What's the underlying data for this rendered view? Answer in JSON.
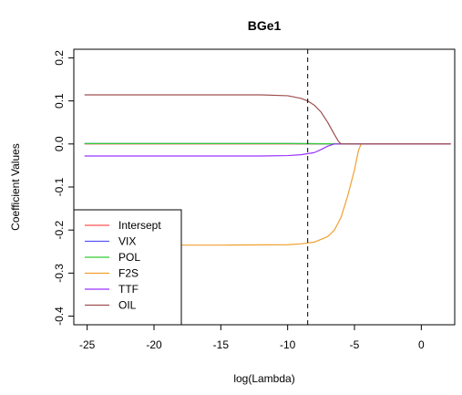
{
  "chart_data": {
    "type": "line",
    "title": "BGe1",
    "xlabel": "log(Lambda)",
    "ylabel": "Coefficient Values",
    "xlim": [
      -26,
      2.5
    ],
    "ylim": [
      -0.42,
      0.22
    ],
    "xticks": [
      -25,
      -20,
      -15,
      -10,
      -5,
      0
    ],
    "yticks": [
      -0.4,
      -0.3,
      -0.2,
      -0.1,
      0.0,
      0.1,
      0.2
    ],
    "ytick_labels": [
      "-0.4",
      "-0.3",
      "-0.2",
      "-0.1",
      "0.0",
      "0.1",
      "0.2"
    ],
    "vline": {
      "x": -8.5,
      "style": "dashed",
      "color": "#000000"
    },
    "grid": false,
    "legend_position": "bottom-left",
    "series": [
      {
        "name": "Intersept",
        "color": "#ff5555",
        "x": [
          -25.2,
          -10,
          -5,
          2.2
        ],
        "y": [
          0.0,
          0.0,
          0.0,
          0.0
        ]
      },
      {
        "name": "VIX",
        "color": "#5555ff",
        "x": [
          -25.2,
          -10,
          -5,
          2.2
        ],
        "y": [
          0.001,
          0.001,
          0.0,
          0.0
        ]
      },
      {
        "name": "POL",
        "color": "#33cc33",
        "x": [
          -25.2,
          -10,
          -5,
          2.2
        ],
        "y": [
          0.001,
          0.001,
          0.0,
          0.0
        ]
      },
      {
        "name": "F2S",
        "color": "#f0a030",
        "x": [
          -25.2,
          -15,
          -10,
          -9,
          -8,
          -7,
          -6.5,
          -6,
          -5.5,
          -5,
          -4.7,
          -4.5,
          2.2
        ],
        "y": [
          -0.235,
          -0.235,
          -0.234,
          -0.232,
          -0.228,
          -0.215,
          -0.2,
          -0.17,
          -0.12,
          -0.06,
          -0.015,
          0.0,
          0.0
        ]
      },
      {
        "name": "TTF",
        "color": "#9933ff",
        "x": [
          -25.2,
          -12,
          -10,
          -9,
          -8,
          -7.5,
          -7,
          -6.5,
          2.2
        ],
        "y": [
          -0.028,
          -0.028,
          -0.027,
          -0.025,
          -0.02,
          -0.013,
          -0.005,
          0.0,
          0.0
        ]
      },
      {
        "name": "OIL",
        "color": "#a05050",
        "x": [
          -25.2,
          -12,
          -10,
          -9,
          -8.5,
          -8,
          -7.5,
          -7,
          -6.5,
          -6.2,
          -6,
          2.2
        ],
        "y": [
          0.114,
          0.114,
          0.112,
          0.106,
          0.1,
          0.09,
          0.074,
          0.05,
          0.022,
          0.006,
          0.0,
          0.0
        ]
      }
    ]
  }
}
